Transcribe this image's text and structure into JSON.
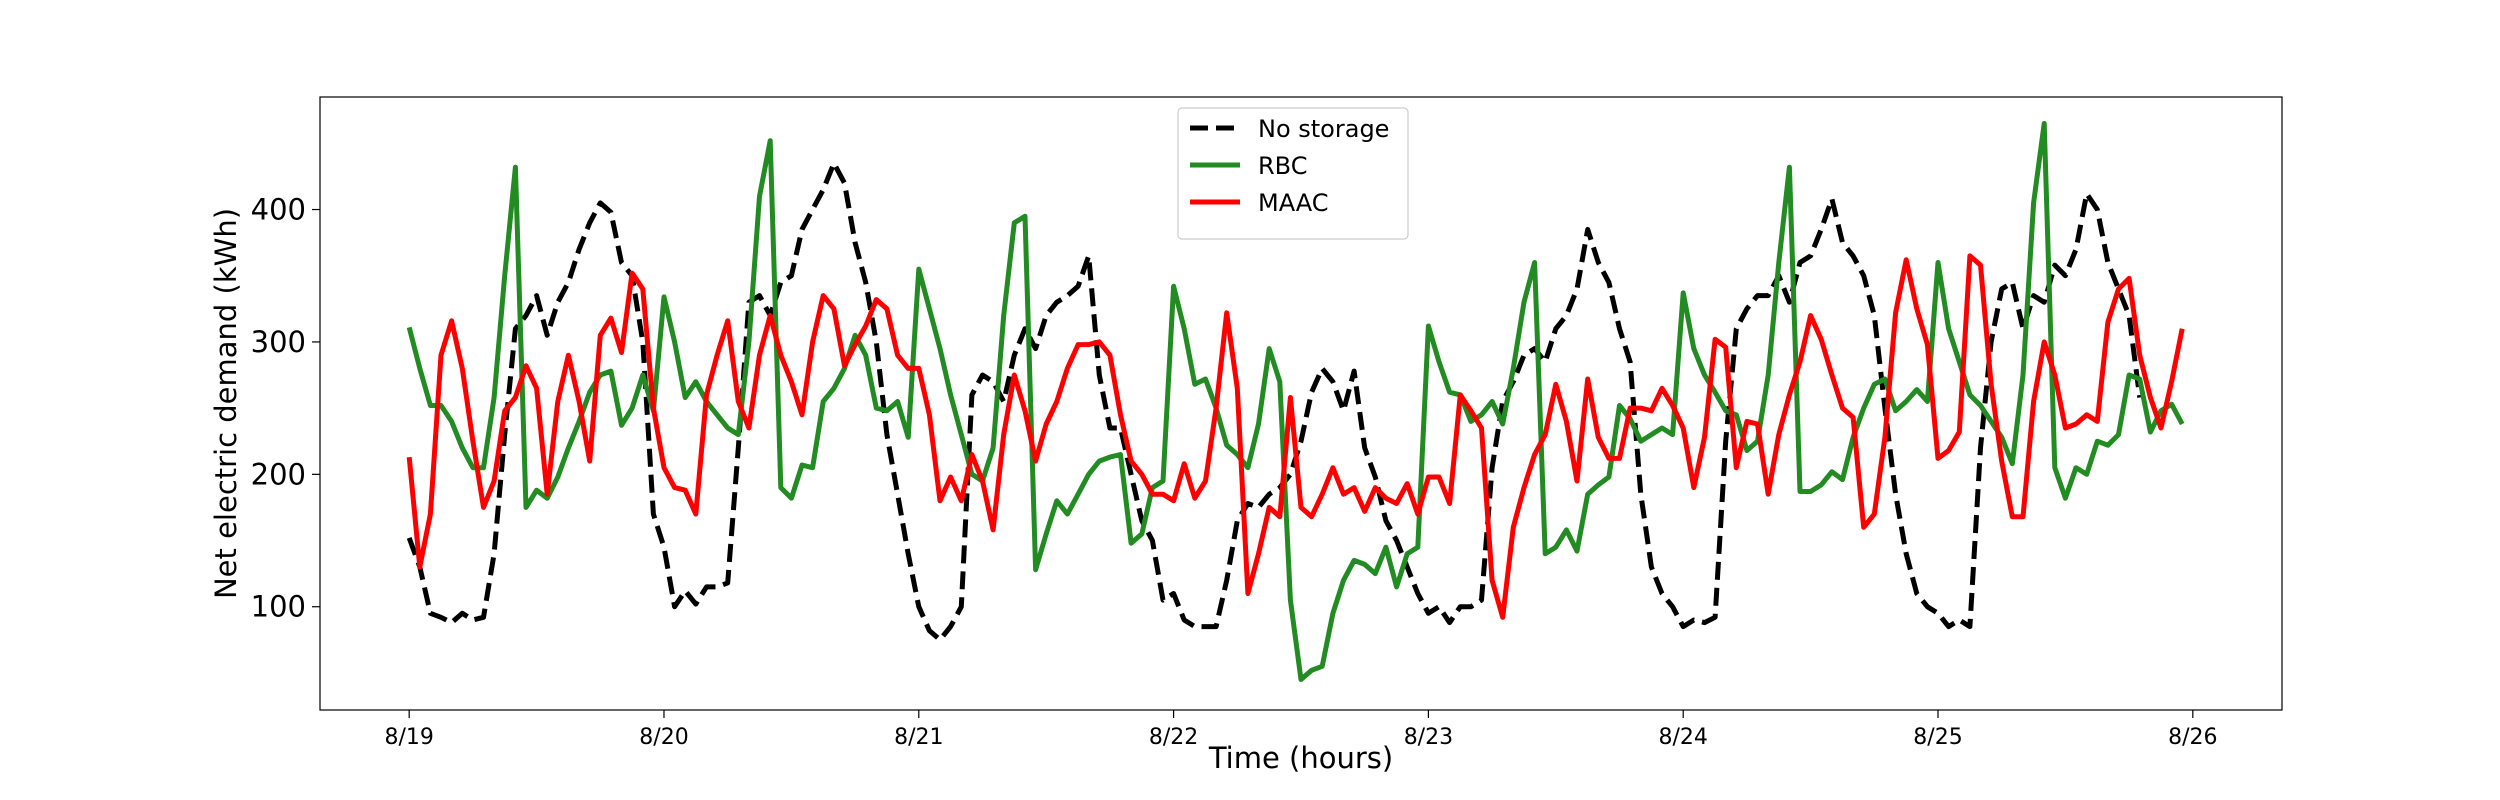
{
  "chart_data": {
    "type": "line",
    "xlabel": "Time (hours)",
    "ylabel": "Net electric demand (kWh)",
    "xlim": [
      -0.35,
      7.35
    ],
    "ylim": [
      22,
      485
    ],
    "x_ticks": [
      0,
      1,
      2,
      3,
      4,
      5,
      6,
      7
    ],
    "x_tick_labels": [
      "8/19",
      "8/20",
      "8/21",
      "8/22",
      "8/23",
      "8/24",
      "8/25",
      "8/26"
    ],
    "y_ticks": [
      100,
      200,
      300,
      400
    ],
    "y_tick_labels": [
      "100",
      "200",
      "300",
      "400"
    ],
    "grid": false,
    "legend_position": "top-center",
    "x_step_days": 0.041667,
    "series": [
      {
        "name": "No storage",
        "color": "#000000",
        "dash": "dashed",
        "values": [
          152,
          130,
          95,
          92,
          88,
          95,
          90,
          92,
          140,
          230,
          310,
          320,
          335,
          305,
          330,
          345,
          370,
          390,
          405,
          398,
          360,
          350,
          300,
          170,
          145,
          100,
          112,
          102,
          115,
          115,
          118,
          220,
          330,
          335,
          320,
          345,
          350,
          385,
          400,
          415,
          435,
          420,
          375,
          345,
          300,
          230,
          185,
          140,
          100,
          82,
          75,
          85,
          100,
          260,
          275,
          270,
          255,
          290,
          310,
          295,
          320,
          330,
          335,
          342,
          365,
          275,
          235,
          235,
          200,
          165,
          150,
          105,
          110,
          90,
          85,
          85,
          85,
          120,
          165,
          178,
          175,
          185,
          190,
          200,
          225,
          262,
          280,
          270,
          248,
          278,
          220,
          198,
          165,
          150,
          130,
          110,
          95,
          100,
          88,
          100,
          100,
          105,
          205,
          255,
          270,
          290,
          295,
          285,
          310,
          320,
          340,
          385,
          360,
          345,
          310,
          285,
          185,
          130,
          110,
          100,
          85,
          90,
          88,
          92,
          225,
          310,
          325,
          335,
          335,
          350,
          330,
          360,
          365,
          385,
          408,
          375,
          365,
          350,
          320,
          250,
          185,
          140,
          110,
          100,
          95,
          85,
          90,
          85,
          220,
          300,
          340,
          345,
          310,
          335,
          330,
          358,
          350,
          370,
          412,
          400,
          360,
          340,
          320,
          258
        ]
      },
      {
        "name": "RBC",
        "color": "#228B22",
        "dash": "solid",
        "values": [
          311,
          280,
          252,
          252,
          240,
          220,
          205,
          205,
          258,
          350,
          432,
          175,
          188,
          182,
          198,
          220,
          240,
          262,
          275,
          278,
          237,
          250,
          275,
          248,
          334,
          300,
          258,
          270,
          255,
          245,
          235,
          230,
          300,
          410,
          452,
          190,
          182,
          207,
          205,
          255,
          265,
          280,
          305,
          290,
          250,
          248,
          255,
          228,
          355,
          325,
          295,
          260,
          230,
          200,
          195,
          220,
          320,
          390,
          395,
          128,
          155,
          180,
          170,
          185,
          200,
          210,
          213,
          215,
          148,
          155,
          190,
          195,
          342,
          310,
          268,
          272,
          250,
          222,
          215,
          205,
          238,
          295,
          270,
          105,
          45,
          52,
          55,
          95,
          120,
          135,
          132,
          125,
          145,
          115,
          140,
          145,
          312,
          285,
          262,
          260,
          240,
          245,
          255,
          238,
          280,
          330,
          360,
          140,
          145,
          158,
          142,
          185,
          192,
          198,
          252,
          242,
          225,
          230,
          235,
          230,
          337,
          295,
          275,
          262,
          248,
          245,
          218,
          225,
          275,
          360,
          432,
          187,
          187,
          192,
          202,
          196,
          228,
          250,
          268,
          272,
          248,
          255,
          264,
          255,
          360,
          310,
          285,
          260,
          252,
          240,
          228,
          208,
          275,
          405,
          465,
          205,
          182,
          205,
          200,
          225,
          222,
          230,
          275,
          272,
          232,
          248,
          253,
          238
        ]
      },
      {
        "name": "MAAC",
        "color": "#FF0000",
        "dash": "solid",
        "values": [
          213,
          130,
          170,
          290,
          316,
          280,
          225,
          175,
          195,
          248,
          258,
          282,
          265,
          185,
          255,
          290,
          255,
          210,
          305,
          318,
          292,
          352,
          340,
          250,
          205,
          190,
          188,
          170,
          260,
          290,
          316,
          255,
          235,
          290,
          320,
          290,
          270,
          245,
          300,
          335,
          325,
          282,
          298,
          312,
          332,
          325,
          290,
          280,
          280,
          245,
          180,
          198,
          180,
          215,
          195,
          158,
          230,
          275,
          248,
          210,
          238,
          255,
          280,
          298,
          298,
          300,
          290,
          245,
          210,
          200,
          185,
          185,
          180,
          208,
          182,
          195,
          250,
          322,
          265,
          110,
          140,
          175,
          168,
          258,
          175,
          168,
          185,
          205,
          185,
          190,
          172,
          190,
          182,
          178,
          193,
          170,
          198,
          198,
          178,
          260,
          248,
          235,
          120,
          92,
          160,
          190,
          215,
          230,
          268,
          240,
          195,
          272,
          228,
          212,
          212,
          250,
          250,
          248,
          265,
          252,
          235,
          190,
          228,
          302,
          296,
          205,
          240,
          238,
          185,
          230,
          260,
          285,
          320,
          302,
          275,
          250,
          243,
          160,
          170,
          228,
          322,
          362,
          325,
          298,
          212,
          218,
          232,
          365,
          358,
          268,
          210,
          168,
          168,
          255,
          300,
          275,
          235,
          238,
          245,
          240,
          315,
          340,
          348,
          290,
          258,
          235,
          270,
          310
        ]
      }
    ]
  }
}
